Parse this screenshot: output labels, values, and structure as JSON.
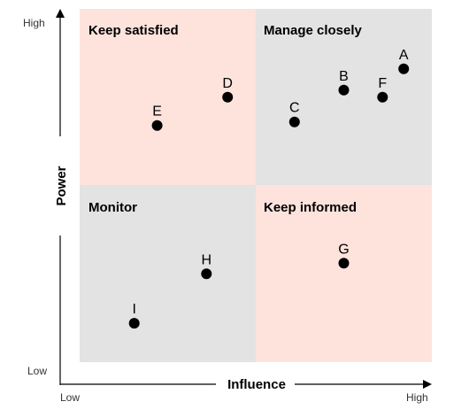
{
  "colors": {
    "quadrant_pink": "#fde3dc",
    "quadrant_gray": "#e3e3e3",
    "dot": "#000000",
    "axis": "#000000"
  },
  "quadrants": {
    "top_left": {
      "title": "Keep satisfied",
      "fill": "pink"
    },
    "top_right": {
      "title": "Manage closely",
      "fill": "gray"
    },
    "bottom_left": {
      "title": "Monitor",
      "fill": "gray"
    },
    "bottom_right": {
      "title": "Keep informed",
      "fill": "pink"
    }
  },
  "axes": {
    "x_title": "Influence",
    "y_title": "Power",
    "x_low": "Low",
    "x_high": "High",
    "y_low": "Low",
    "y_high": "High"
  },
  "chart_data": {
    "type": "scatter",
    "xlabel": "Influence",
    "ylabel": "Power",
    "xlim": [
      0,
      1
    ],
    "ylim": [
      0,
      1
    ],
    "points": [
      {
        "label": "A",
        "x": 0.92,
        "y": 0.83
      },
      {
        "label": "B",
        "x": 0.75,
        "y": 0.77
      },
      {
        "label": "C",
        "x": 0.61,
        "y": 0.68
      },
      {
        "label": "D",
        "x": 0.42,
        "y": 0.75
      },
      {
        "label": "E",
        "x": 0.22,
        "y": 0.67
      },
      {
        "label": "F",
        "x": 0.86,
        "y": 0.75
      },
      {
        "label": "G",
        "x": 0.75,
        "y": 0.28
      },
      {
        "label": "H",
        "x": 0.36,
        "y": 0.25
      },
      {
        "label": "I",
        "x": 0.155,
        "y": 0.11
      }
    ]
  }
}
